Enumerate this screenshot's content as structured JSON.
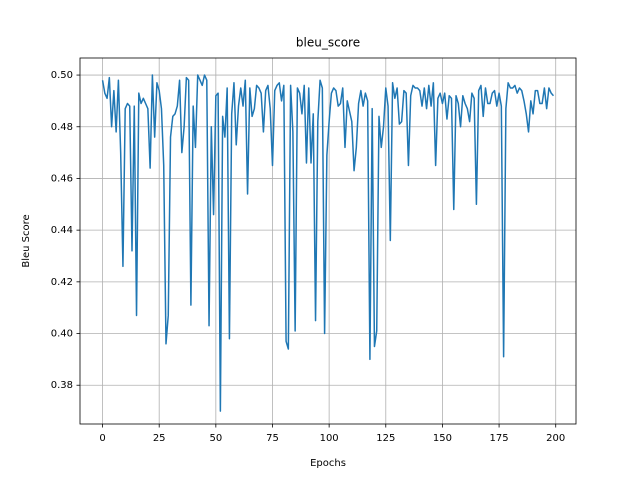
{
  "chart_data": {
    "type": "line",
    "title": "bleu_score",
    "x_label": "Epochs",
    "y_label": "Bleu Score",
    "x": [
      0,
      1,
      2,
      3,
      4,
      5,
      6,
      7,
      8,
      9,
      10,
      11,
      12,
      13,
      14,
      15,
      16,
      17,
      18,
      19,
      20,
      21,
      22,
      23,
      24,
      25,
      26,
      27,
      28,
      29,
      30,
      31,
      32,
      33,
      34,
      35,
      36,
      37,
      38,
      39,
      40,
      41,
      42,
      43,
      44,
      45,
      46,
      47,
      48,
      49,
      50,
      51,
      52,
      53,
      54,
      55,
      56,
      57,
      58,
      59,
      60,
      61,
      62,
      63,
      64,
      65,
      66,
      67,
      68,
      69,
      70,
      71,
      72,
      73,
      74,
      75,
      76,
      77,
      78,
      79,
      80,
      81,
      82,
      83,
      84,
      85,
      86,
      87,
      88,
      89,
      90,
      91,
      92,
      93,
      94,
      95,
      96,
      97,
      98,
      99,
      100,
      101,
      102,
      103,
      104,
      105,
      106,
      107,
      108,
      109,
      110,
      111,
      112,
      113,
      114,
      115,
      116,
      117,
      118,
      119,
      120,
      121,
      122,
      123,
      124,
      125,
      126,
      127,
      128,
      129,
      130,
      131,
      132,
      133,
      134,
      135,
      136,
      137,
      138,
      139,
      140,
      141,
      142,
      143,
      144,
      145,
      146,
      147,
      148,
      149,
      150,
      151,
      152,
      153,
      154,
      155,
      156,
      157,
      158,
      159,
      160,
      161,
      162,
      163,
      164,
      165,
      166,
      167,
      168,
      169,
      170,
      171,
      172,
      173,
      174,
      175,
      176,
      177,
      178,
      179,
      180,
      181,
      182,
      183,
      184,
      185,
      186,
      187,
      188,
      189,
      190,
      191,
      192,
      193,
      194,
      195,
      196,
      197,
      198,
      199
    ],
    "series": [
      {
        "name": "bleu_score",
        "color": "#1f77b4",
        "values": [
          0.498,
          0.493,
          0.491,
          0.499,
          0.48,
          0.494,
          0.478,
          0.498,
          0.47,
          0.426,
          0.487,
          0.489,
          0.488,
          0.432,
          0.488,
          0.407,
          0.493,
          0.489,
          0.491,
          0.489,
          0.487,
          0.464,
          0.5,
          0.476,
          0.497,
          0.494,
          0.487,
          0.465,
          0.396,
          0.407,
          0.476,
          0.484,
          0.485,
          0.488,
          0.498,
          0.47,
          0.48,
          0.499,
          0.498,
          0.411,
          0.488,
          0.472,
          0.5,
          0.498,
          0.496,
          0.5,
          0.498,
          0.403,
          0.48,
          0.446,
          0.492,
          0.493,
          0.37,
          0.484,
          0.476,
          0.495,
          0.398,
          0.485,
          0.497,
          0.473,
          0.488,
          0.495,
          0.488,
          0.498,
          0.454,
          0.495,
          0.484,
          0.487,
          0.496,
          0.495,
          0.493,
          0.478,
          0.494,
          0.496,
          0.487,
          0.465,
          0.494,
          0.496,
          0.497,
          0.49,
          0.496,
          0.397,
          0.394,
          0.496,
          0.478,
          0.401,
          0.495,
          0.493,
          0.485,
          0.496,
          0.466,
          0.495,
          0.466,
          0.485,
          0.405,
          0.482,
          0.498,
          0.495,
          0.4,
          0.469,
          0.482,
          0.493,
          0.495,
          0.494,
          0.488,
          0.489,
          0.495,
          0.472,
          0.49,
          0.486,
          0.482,
          0.463,
          0.472,
          0.489,
          0.494,
          0.488,
          0.493,
          0.49,
          0.39,
          0.487,
          0.395,
          0.401,
          0.484,
          0.472,
          0.48,
          0.495,
          0.488,
          0.436,
          0.497,
          0.491,
          0.495,
          0.481,
          0.482,
          0.494,
          0.493,
          0.465,
          0.492,
          0.496,
          0.495,
          0.495,
          0.494,
          0.488,
          0.495,
          0.487,
          0.496,
          0.488,
          0.497,
          0.465,
          0.491,
          0.493,
          0.489,
          0.493,
          0.483,
          0.492,
          0.491,
          0.448,
          0.492,
          0.489,
          0.48,
          0.492,
          0.489,
          0.487,
          0.482,
          0.493,
          0.491,
          0.45,
          0.494,
          0.496,
          0.484,
          0.495,
          0.489,
          0.489,
          0.493,
          0.494,
          0.488,
          0.493,
          0.488,
          0.391,
          0.487,
          0.497,
          0.495,
          0.495,
          0.496,
          0.493,
          0.495,
          0.494,
          0.49,
          0.485,
          0.478,
          0.49,
          0.485,
          0.494,
          0.494,
          0.489,
          0.489,
          0.495,
          0.487,
          0.495,
          0.493,
          0.492
        ]
      }
    ],
    "xlim": [
      -9.95,
      208.95
    ],
    "ylim": [
      0.365,
      0.5066
    ],
    "xticks": [
      0,
      25,
      50,
      75,
      100,
      125,
      150,
      175,
      200
    ],
    "yticks": [
      0.38,
      {
        "value": 0.4,
        "label": "0.40"
      },
      0.42,
      0.44,
      0.46,
      0.48,
      {
        "value": 0.5,
        "label": "0.50"
      }
    ],
    "grid": true
  }
}
